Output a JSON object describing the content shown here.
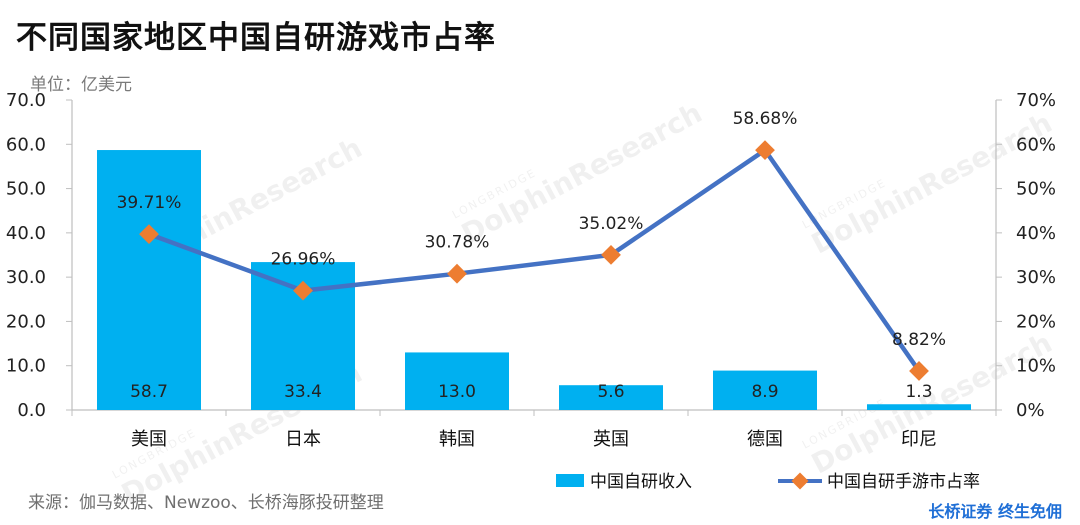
{
  "header": {
    "title": "不同国家地区中国自研游戏市占率",
    "unit": "单位：亿美元"
  },
  "footer": {
    "source": "来源：伽马数据、Newzoo、长桥海豚投研整理",
    "brand": "长桥证券 终生免佣"
  },
  "watermark": {
    "line1": "LONGBRIDGE",
    "line2": "DolphinResearch"
  },
  "colors": {
    "bar": "#00b0f0",
    "line": "#4472c4",
    "marker": "#ed7d31",
    "axis": "#bfbfbf"
  },
  "chart_data": {
    "type": "bar",
    "categories": [
      "美国",
      "日本",
      "韩国",
      "英国",
      "德国",
      "印尼"
    ],
    "series": [
      {
        "name": "中国自研收入",
        "type": "bar",
        "axis": "left",
        "values": [
          58.7,
          33.4,
          13.0,
          5.6,
          8.9,
          1.3
        ],
        "labels": [
          "58.7",
          "33.4",
          "13.0",
          "5.6",
          "8.9",
          "1.3"
        ]
      },
      {
        "name": "中国自研手游市占率",
        "type": "line",
        "axis": "right",
        "values": [
          39.71,
          26.96,
          30.78,
          35.02,
          58.68,
          8.82
        ],
        "labels": [
          "39.71%",
          "26.96%",
          "30.78%",
          "35.02%",
          "58.68%",
          "8.82%"
        ]
      }
    ],
    "ylim": [
      0,
      70
    ],
    "y2lim": [
      0,
      70
    ],
    "yticks": [
      "0.0",
      "10.0",
      "20.0",
      "30.0",
      "40.0",
      "50.0",
      "60.0",
      "70.0"
    ],
    "y2ticks": [
      "0%",
      "10%",
      "20%",
      "30%",
      "40%",
      "50%",
      "60%",
      "70%"
    ],
    "grid": false,
    "legend_position": "bottom-right"
  }
}
